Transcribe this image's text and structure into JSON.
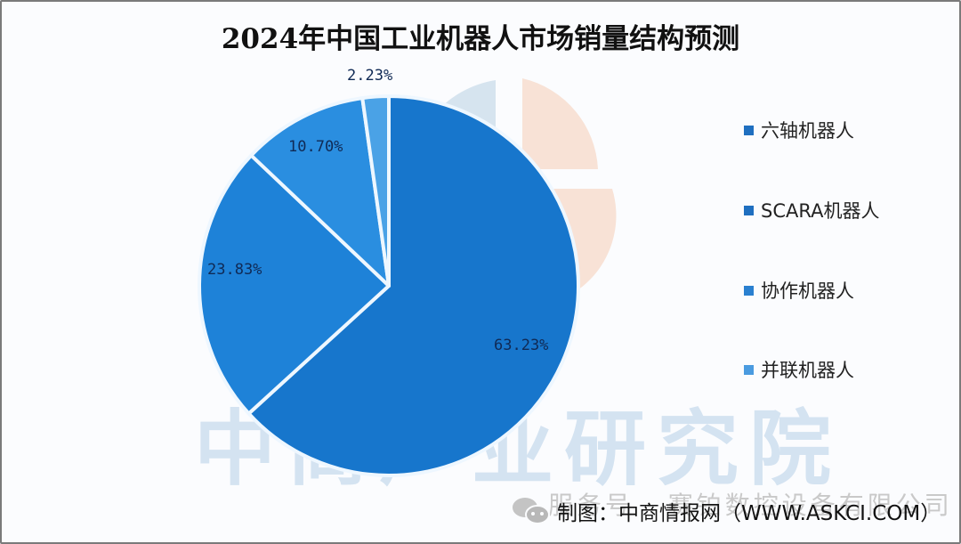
{
  "chart_data": {
    "type": "pie",
    "title": "2024年中国工业机器人市场销量结构预测",
    "categories": [
      "六轴机器人",
      "SCARA机器人",
      "协作机器人",
      "并联机器人"
    ],
    "values": [
      63.23,
      23.83,
      10.7,
      2.23
    ],
    "unit": "%",
    "data_labels": [
      "63.23%",
      "23.83%",
      "10.70%",
      "2.23%"
    ],
    "colors": [
      "#1776cc",
      "#1e82d8",
      "#2a8ee0",
      "#4aa2e6"
    ],
    "legend_position": "right",
    "start_angle_deg": 0,
    "direction": "clockwise"
  },
  "title": "2024年中国工业机器人市场销量结构预测",
  "legend": {
    "items": [
      {
        "label": "六轴机器人",
        "color": "#1f6fc0"
      },
      {
        "label": "SCARA机器人",
        "color": "#1f6fc0"
      },
      {
        "label": "协作机器人",
        "color": "#2a80d0"
      },
      {
        "label": "并联机器人",
        "color": "#4a9be0"
      }
    ]
  },
  "labels": {
    "six_axis": "63.23%",
    "scara": "23.83%",
    "collab": "10.70%",
    "parallel": "2.23%"
  },
  "watermark": {
    "text": "中商产业研究院",
    "service_text": "服务号 · 赛铂数控设备有限公司"
  },
  "footer": {
    "source": "制图：中商情报网（WWW.ASKCI.COM）"
  }
}
